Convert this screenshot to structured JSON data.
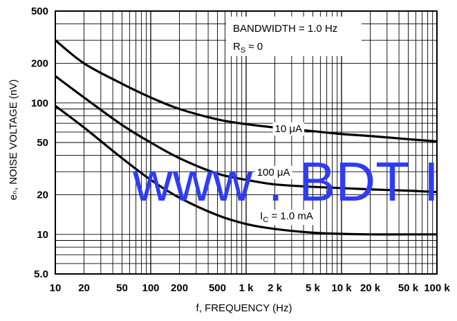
{
  "chart_data": {
    "type": "line",
    "title": "",
    "xlabel": "f, FREQUENCY (Hz)",
    "ylabel": "eₙ, NOISE VOLTAGE (nV)",
    "x_scale": "log",
    "y_scale": "log",
    "xlim": [
      10,
      100000
    ],
    "ylim": [
      5,
      500
    ],
    "grid": true,
    "x_ticks": [
      {
        "value": 10,
        "label": "10"
      },
      {
        "value": 20,
        "label": "20"
      },
      {
        "value": 50,
        "label": "50"
      },
      {
        "value": 100,
        "label": "100"
      },
      {
        "value": 200,
        "label": "200"
      },
      {
        "value": 500,
        "label": "500"
      },
      {
        "value": 1000,
        "label": "1 k"
      },
      {
        "value": 2000,
        "label": "2 k"
      },
      {
        "value": 5000,
        "label": "5 k"
      },
      {
        "value": 10000,
        "label": "10 k"
      },
      {
        "value": 20000,
        "label": "20 k"
      },
      {
        "value": 50000,
        "label": "50 k"
      },
      {
        "value": 100000,
        "label": "100 k"
      }
    ],
    "y_ticks": [
      {
        "value": 5,
        "label": "5.0"
      },
      {
        "value": 10,
        "label": "10"
      },
      {
        "value": 20,
        "label": "20"
      },
      {
        "value": 50,
        "label": "50"
      },
      {
        "value": 100,
        "label": "100"
      },
      {
        "value": 200,
        "label": "200"
      },
      {
        "value": 500,
        "label": "500"
      }
    ],
    "annotation": {
      "line1": "BANDWIDTH = 1.0 Hz",
      "line2_main": "R",
      "line2_sub": "S",
      "line2_rest": " ≈ 0"
    },
    "series": [
      {
        "label": "10 μA",
        "label_at": [
          2000,
          60
        ],
        "x": [
          10,
          20,
          50,
          100,
          200,
          500,
          1000,
          2000,
          5000,
          10000,
          20000,
          50000,
          100000
        ],
        "y": [
          300,
          200,
          140,
          110,
          90,
          75,
          69,
          65,
          61,
          58,
          56,
          53,
          51
        ]
      },
      {
        "label": "100 μA",
        "label_at": [
          1300,
          28
        ],
        "x": [
          10,
          20,
          50,
          100,
          200,
          500,
          1000,
          2000,
          5000,
          10000,
          20000,
          50000,
          100000
        ],
        "y": [
          160,
          110,
          68,
          50,
          38,
          29,
          26,
          24,
          23,
          22.5,
          22,
          21.5,
          21
        ]
      },
      {
        "label_main": "I",
        "label_sub": "C",
        "label_rest": " = 1.0 mA",
        "label_at": [
          1400,
          13
        ],
        "x": [
          10,
          20,
          50,
          100,
          200,
          500,
          1000,
          2000,
          5000,
          10000,
          20000,
          50000,
          100000
        ],
        "y": [
          95,
          65,
          38,
          26,
          19,
          14,
          12,
          11,
          10.3,
          10.1,
          10,
          10,
          10
        ]
      }
    ]
  },
  "watermark": {
    "text": "www . BDT I"
  }
}
